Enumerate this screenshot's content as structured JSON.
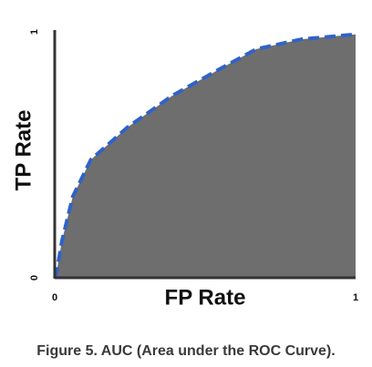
{
  "chart_data": {
    "type": "area",
    "caption": "Figure 5. AUC (Area under the ROC Curve).",
    "x_label": "FP Rate",
    "y_label": "TP Rate",
    "x": [
      0,
      0.006,
      0.024,
      0.06,
      0.12,
      0.24,
      0.39,
      0.55,
      0.67,
      0.82,
      1
    ],
    "values": [
      0,
      0.02,
      0.15,
      0.33,
      0.48,
      0.61,
      0.74,
      0.85,
      0.93,
      0.97,
      0.99
    ],
    "color": "#2f63c8",
    "fill": "#6e6e6e",
    "line_style": "dashed",
    "xlim": [
      0,
      1
    ],
    "ylim": [
      0,
      1
    ],
    "xticks": [
      0,
      1
    ],
    "yticks": [
      0,
      1
    ]
  }
}
